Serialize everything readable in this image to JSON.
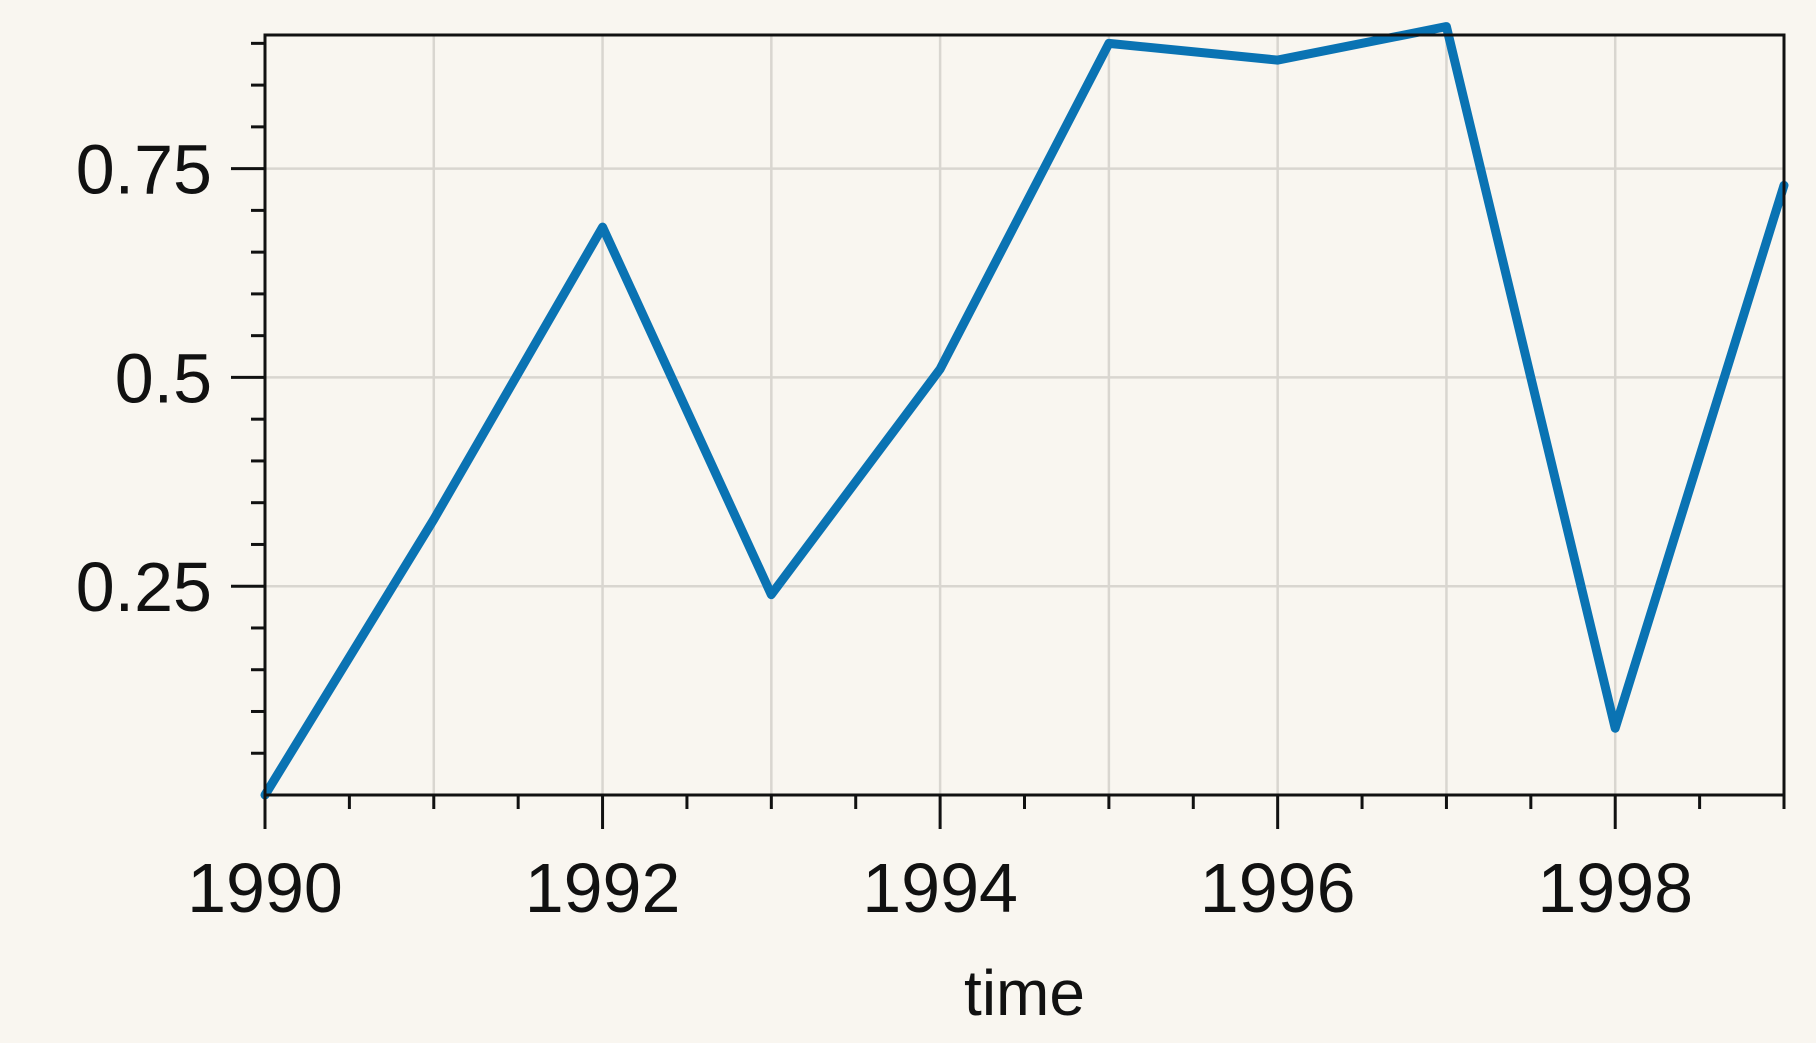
{
  "chart_data": {
    "type": "line",
    "title": "",
    "xlabel": "time",
    "ylabel": "",
    "x": [
      1990,
      1991,
      1992,
      1993,
      1994,
      1995,
      1996,
      1997,
      1998,
      1999
    ],
    "series": [
      {
        "values": [
          0.0,
          0.33,
          0.68,
          0.24,
          0.51,
          0.9,
          0.88,
          0.92,
          0.08,
          0.73
        ]
      }
    ],
    "xlim": [
      1990,
      1999
    ],
    "ylim": [
      0.0,
      0.91
    ],
    "xticks": [
      1990,
      1992,
      1994,
      1996,
      1998
    ],
    "xtick_labels": [
      "1990",
      "1992",
      "1994",
      "1996",
      "1998"
    ],
    "yticks": [
      0.25,
      0.5,
      0.75
    ],
    "ytick_labels": [
      "0.25",
      "0.5",
      "0.75"
    ],
    "grid": true,
    "colors": {
      "background": "#f9f6f0",
      "line": "#0a73b3",
      "grid": "#d9d6d0",
      "axis": "#111111"
    }
  }
}
